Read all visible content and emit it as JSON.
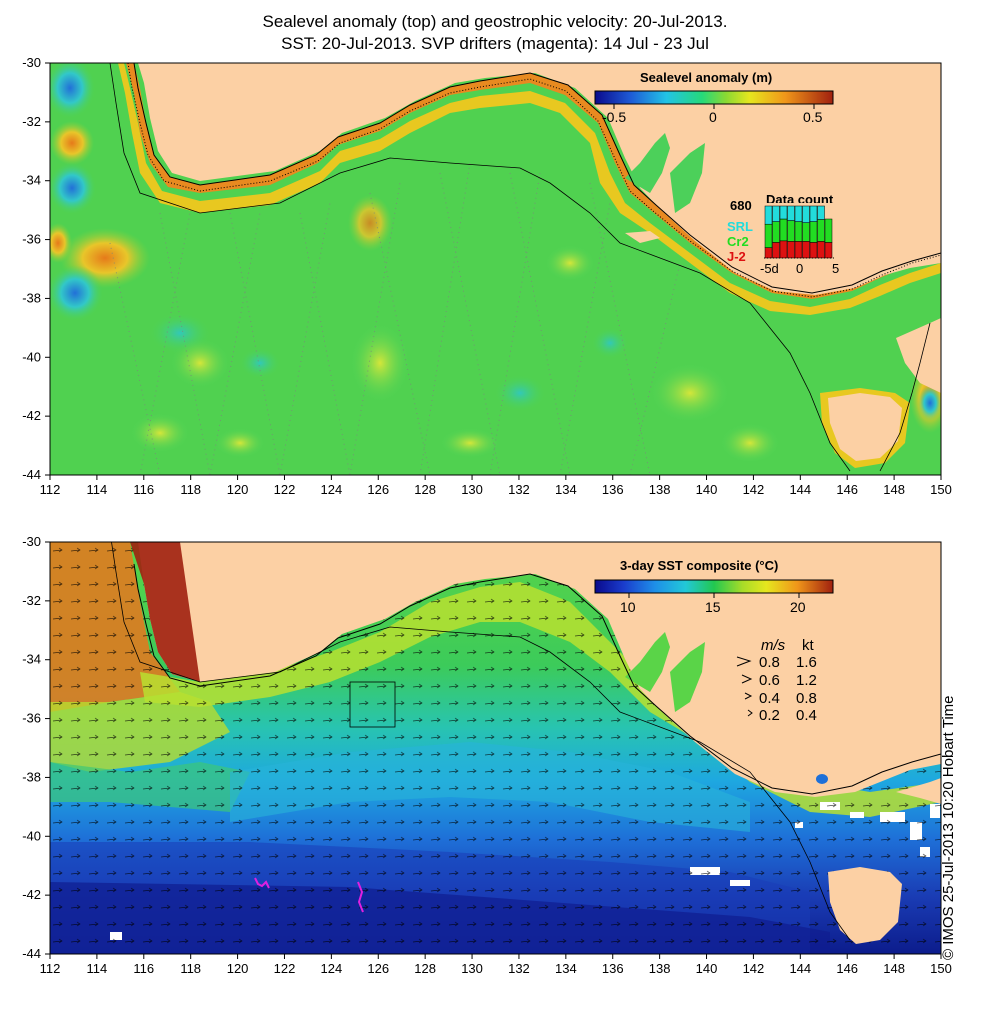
{
  "title_line1": "Sealevel anomaly (top) and geostrophic velocity: 20-Jul-2013.",
  "title_line2": "SST: 20-Jul-2013. SVP drifters (magenta): 14 Jul - 23 Jul",
  "copyright": "© IMOS 25-Jul-2013 10:20 Hobart Time",
  "axes": {
    "lon_ticks": [
      "112",
      "114",
      "116",
      "118",
      "120",
      "122",
      "124",
      "126",
      "128",
      "130",
      "132",
      "134",
      "136",
      "138",
      "140",
      "142",
      "144",
      "146",
      "148",
      "150"
    ],
    "lat_ticks": [
      "-30",
      "-32",
      "-34",
      "-36",
      "-38",
      "-40",
      "-42",
      "-44"
    ],
    "lon_range": [
      112,
      150
    ],
    "lat_range": [
      -30,
      -44
    ]
  },
  "top_panel": {
    "colorbar_title": "Sealevel anomaly (m)",
    "colorbar_ticks": [
      "-0.5",
      "0",
      "0.5"
    ],
    "colorbar_range": [
      -0.6,
      0.6
    ],
    "inset": {
      "count": "680",
      "title": "Data count",
      "legend": [
        {
          "label": "SRL",
          "color": "#22dcdc"
        },
        {
          "label": "Cr2",
          "color": "#22dd22"
        },
        {
          "label": "J-2",
          "color": "#dd1111"
        }
      ],
      "xticks": [
        "-5d",
        "0",
        "5"
      ],
      "bars": [
        {
          "srl": 0.35,
          "cr2": 0.45,
          "j2": 0.2
        },
        {
          "srl": 0.3,
          "cr2": 0.4,
          "j2": 0.3
        },
        {
          "srl": 0.25,
          "cr2": 0.42,
          "j2": 0.33
        },
        {
          "srl": 0.28,
          "cr2": 0.4,
          "j2": 0.32
        },
        {
          "srl": 0.3,
          "cr2": 0.38,
          "j2": 0.32
        },
        {
          "srl": 0.32,
          "cr2": 0.36,
          "j2": 0.32
        },
        {
          "srl": 0.3,
          "cr2": 0.4,
          "j2": 0.3
        },
        {
          "srl": 0.26,
          "cr2": 0.42,
          "j2": 0.32
        },
        {
          "srl": 0.0,
          "cr2": 0.45,
          "j2": 0.3
        }
      ]
    }
  },
  "bottom_panel": {
    "colorbar_title": "3-day SST composite (°C)",
    "colorbar_ticks": [
      "10",
      "15",
      "20"
    ],
    "colorbar_range": [
      8,
      22
    ],
    "speed_key": {
      "headers": [
        "m/s",
        "kt"
      ],
      "rows": [
        {
          "ms": "0.8",
          "kt": "1.6"
        },
        {
          "ms": "0.6",
          "kt": "1.2"
        },
        {
          "ms": "0.4",
          "kt": "0.8"
        },
        {
          "ms": "0.2",
          "kt": "0.4"
        }
      ]
    }
  },
  "colors": {
    "land": "#fcd0a4",
    "missing": "#ffffff",
    "drifter": "#e020e0"
  }
}
